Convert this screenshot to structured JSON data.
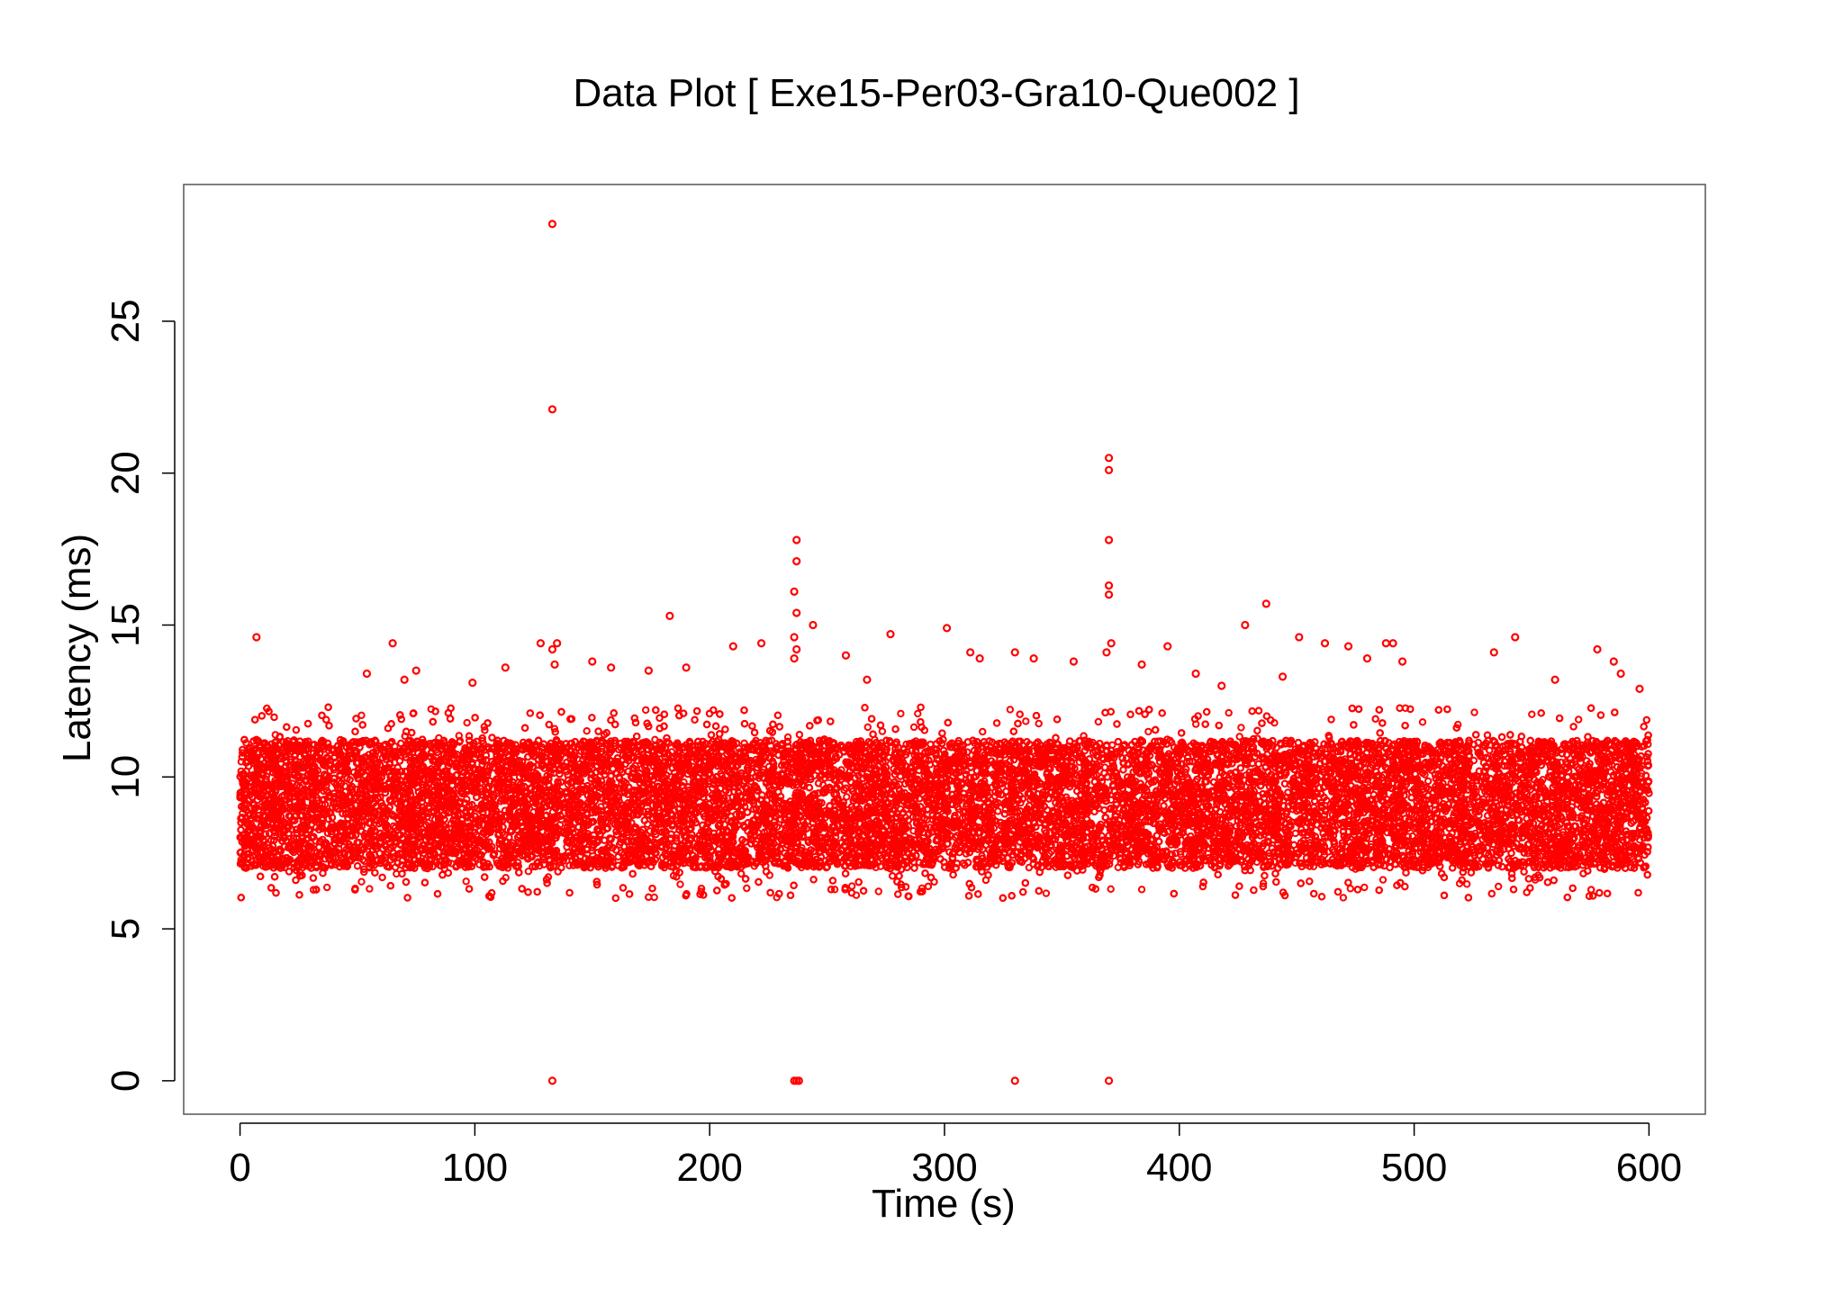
{
  "chart_data": {
    "type": "scatter",
    "title": "Data Plot [ Exe15-Per03-Gra10-Que002 ]",
    "xlabel": "Time (s)",
    "ylabel": "Latency (ms)",
    "xlim": [
      -24,
      624
    ],
    "ylim": [
      -1.1,
      29.5
    ],
    "xticks": [
      0,
      100,
      200,
      300,
      400,
      500,
      600
    ],
    "yticks": [
      0,
      5,
      10,
      15,
      20,
      25
    ],
    "grid": false,
    "legend": "none",
    "marker": "open-circle",
    "color": "#ff0000",
    "dense_band": {
      "x_range": [
        0,
        600
      ],
      "y_core_range": [
        7.0,
        11.2
      ],
      "y_extent_range": [
        6.0,
        12.3
      ],
      "description_points_per_second": 50
    },
    "series": [
      {
        "values": [
          [
            133,
            28.2
          ],
          [
            133,
            22.1
          ],
          [
            133,
            0
          ],
          [
            133,
            14.2
          ],
          [
            134,
            13.7
          ],
          [
            135,
            14.4
          ],
          [
            237,
            17.8
          ],
          [
            237,
            17.1
          ],
          [
            236,
            16.1
          ],
          [
            237,
            15.4
          ],
          [
            236,
            14.6
          ],
          [
            237,
            14.2
          ],
          [
            236,
            13.9
          ],
          [
            236,
            0
          ],
          [
            237,
            0
          ],
          [
            238,
            0
          ],
          [
            330,
            0
          ],
          [
            370,
            0
          ],
          [
            370,
            20.5
          ],
          [
            370,
            20.1
          ],
          [
            370,
            17.8
          ],
          [
            370,
            16.3
          ],
          [
            370,
            16.0
          ],
          [
            371,
            14.4
          ],
          [
            369,
            14.1
          ],
          [
            7,
            14.6
          ],
          [
            65,
            14.4
          ],
          [
            183,
            15.3
          ],
          [
            244,
            15.0
          ],
          [
            301,
            14.9
          ],
          [
            277,
            14.7
          ],
          [
            428,
            15.0
          ],
          [
            437,
            15.7
          ],
          [
            451,
            14.6
          ],
          [
            462,
            14.4
          ],
          [
            472,
            14.3
          ],
          [
            488,
            14.4
          ],
          [
            491,
            14.4
          ],
          [
            534,
            14.1
          ],
          [
            543,
            14.6
          ],
          [
            578,
            14.2
          ],
          [
            585,
            13.8
          ],
          [
            54,
            13.4
          ],
          [
            70,
            13.2
          ],
          [
            75,
            13.5
          ],
          [
            99,
            13.1
          ],
          [
            113,
            13.6
          ],
          [
            128,
            14.4
          ],
          [
            150,
            13.8
          ],
          [
            158,
            13.6
          ],
          [
            174,
            13.5
          ],
          [
            190,
            13.6
          ],
          [
            210,
            14.3
          ],
          [
            222,
            14.4
          ],
          [
            258,
            14.0
          ],
          [
            267,
            13.2
          ],
          [
            311,
            14.1
          ],
          [
            315,
            13.9
          ],
          [
            330,
            14.1
          ],
          [
            338,
            13.9
          ],
          [
            355,
            13.8
          ],
          [
            384,
            13.7
          ],
          [
            395,
            14.3
          ],
          [
            407,
            13.4
          ],
          [
            418,
            13.0
          ],
          [
            444,
            13.3
          ],
          [
            480,
            13.9
          ],
          [
            495,
            13.8
          ],
          [
            560,
            13.2
          ],
          [
            588,
            13.4
          ],
          [
            596,
            12.9
          ]
        ]
      }
    ]
  }
}
